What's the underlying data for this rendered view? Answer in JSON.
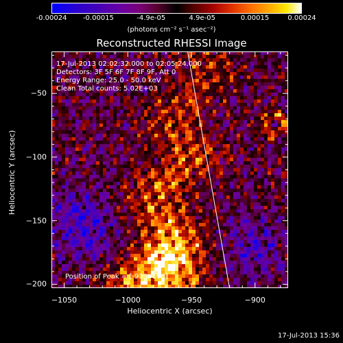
{
  "colorbar": {
    "ticks": [
      "-0.00024",
      "-0.00015",
      "-4.9e-05",
      "4.9e-05",
      "0.00015",
      "0.00024"
    ],
    "unit": "(photons cm⁻² s⁻¹ asec⁻²)",
    "range": [
      -0.00024,
      0.00024
    ]
  },
  "title": "Reconstructed RHESSI Image",
  "info": {
    "time_range": "17-Jul-2013 02:02:32.000 to 02:05:24.000",
    "detectors": "Detectors: 3F 5F 6F 7F 8F 9F, Att 0",
    "energy": "Energy Range: 25.0 - 50.0 keV",
    "method": "Clean     Total counts: 5.02E+03"
  },
  "peak": "Position of Peak = [-939,-198]",
  "timestamp": "17-Jul-2013 15:36",
  "chart_data": {
    "type": "heatmap",
    "title": "Reconstructed RHESSI Image",
    "xlabel": "Heliocentric X (arcsec)",
    "ylabel": "Heliocentric Y (arcsec)",
    "xlim": [
      -1060,
      -874
    ],
    "ylim": [
      -203,
      -17
    ],
    "xticks": [
      -1050,
      -1000,
      -950,
      -900
    ],
    "yticks": [
      -200,
      -150,
      -100,
      -50
    ],
    "xtick_labels": [
      "−1050",
      "−1000",
      "−950",
      "−900"
    ],
    "ytick_labels": [
      "−200",
      "−150",
      "−100",
      "−50"
    ],
    "limb_line": [
      [
        -953,
        -17
      ],
      [
        -920,
        -203
      ]
    ],
    "colorbar_range": [
      -0.00024,
      0.00024
    ],
    "peak_position": [
      -939,
      -198
    ],
    "colormap": "blue-purple-black-red-yellow-white"
  }
}
